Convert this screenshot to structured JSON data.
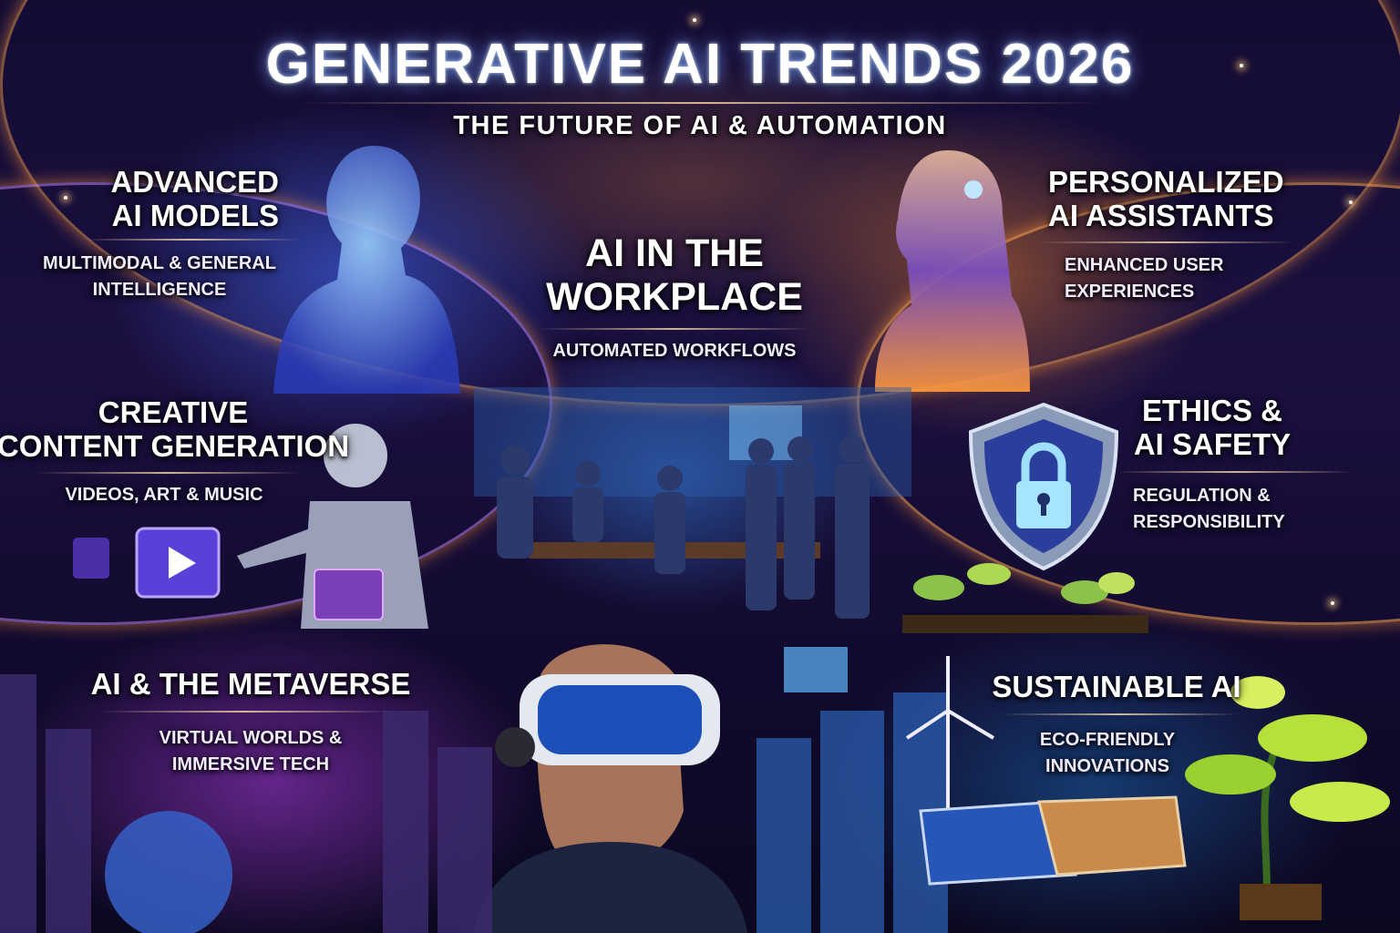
{
  "header": {
    "title": "GENERATIVE AI TRENDS 2026",
    "subtitle": "THE FUTURE OF AI & AUTOMATION"
  },
  "sections": [
    {
      "title_lines": [
        "ADVANCED",
        "AI MODELS"
      ],
      "subtitle_lines": [
        "MULTIMODAL & GENERAL",
        "INTELLIGENCE"
      ],
      "icon": "holographic-woman-icon"
    },
    {
      "title_lines": [
        "AI IN THE",
        "WORKPLACE"
      ],
      "subtitle_lines": [
        "AUTOMATED WORKFLOWS"
      ],
      "icon": "office-team-icon"
    },
    {
      "title_lines": [
        "PERSONALIZED",
        "AI ASSISTANTS"
      ],
      "subtitle_lines": [
        "ENHANCED USER",
        "EXPERIENCES"
      ],
      "icon": "assistant-woman-icon"
    },
    {
      "title_lines": [
        "CREATIVE",
        "CONTENT GENERATION"
      ],
      "subtitle_lines": [
        "VIDEOS, ART & MUSIC"
      ],
      "icon": "robot-play-icon"
    },
    {
      "title_lines": [
        "ETHICS &",
        "AI SAFETY"
      ],
      "subtitle_lines": [
        "REGULATION &",
        "RESPONSIBILITY"
      ],
      "icon": "shield-lock-icon"
    },
    {
      "title_lines": [
        "AI & THE METAVERSE"
      ],
      "subtitle_lines": [
        "VIRTUAL WORLDS &",
        "IMMERSIVE TECH"
      ],
      "icon": "vr-headset-icon"
    },
    {
      "title_lines": [
        "SUSTAINABLE AI"
      ],
      "subtitle_lines": [
        "ECO-FRIENDLY",
        "INNOVATIONS"
      ],
      "icon": "wind-solar-plant-icon"
    }
  ],
  "colors": {
    "background": "#140c33",
    "blue_glow": "#4a7dff",
    "orange_glow": "#ff9a3c",
    "purple_glow": "#aa3cdc"
  }
}
